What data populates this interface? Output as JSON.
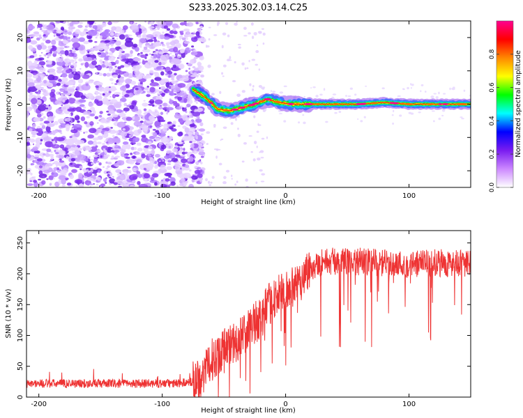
{
  "figure_title": "S233.2025.302.03.14.C25",
  "chart_data": [
    {
      "type": "heatmap",
      "title": "S233.2025.302.03.14.C25",
      "xlabel": "Height of straight line (km)",
      "ylabel": "Frequency (Hz)",
      "xlim": [
        -210,
        150
      ],
      "ylim": [
        -25,
        25
      ],
      "xticks": [
        -200,
        -100,
        0,
        100
      ],
      "yticks": [
        -20,
        -10,
        0,
        10,
        20
      ],
      "colorbar": {
        "label": "Normalized spectral amplitude",
        "range": [
          0,
          1
        ],
        "ticks": [
          0.0,
          0.2,
          0.4,
          0.6,
          0.8
        ],
        "colors": [
          "#ffffff",
          "#cc88ff",
          "#7a1cf0",
          "#0000ff",
          "#00ffff",
          "#00ff00",
          "#ffff00",
          "#ff8800",
          "#ff0000",
          "#ff0090"
        ]
      },
      "regions": [
        {
          "name": "noise",
          "height_range": [
            -210,
            -75
          ],
          "frequency_range": [
            -25,
            25
          ],
          "amplitude": "low"
        },
        {
          "name": "signal_band",
          "height_range": [
            -75,
            150
          ],
          "center_frequency": [
            [
              -75,
              4.5
            ],
            [
              -65,
              2.0
            ],
            [
              -55,
              -1.5
            ],
            [
              -45,
              -2.0
            ],
            [
              -35,
              -1.0
            ],
            [
              -25,
              0.0
            ],
            [
              -15,
              1.5
            ],
            [
              -5,
              0.5
            ],
            [
              5,
              0.0
            ],
            [
              20,
              0.0
            ],
            [
              40,
              0.0
            ],
            [
              60,
              0.0
            ],
            [
              80,
              0.5
            ],
            [
              100,
              0.0
            ],
            [
              150,
              0.0
            ]
          ]
        }
      ]
    },
    {
      "type": "line",
      "xlabel": "Height of straight line (km)",
      "ylabel": "SNR (10 * v/v)",
      "xlim": [
        -210,
        150
      ],
      "ylim": [
        0,
        270
      ],
      "xticks": [
        -200,
        -100,
        0,
        100
      ],
      "yticks": [
        0,
        50,
        100,
        150,
        200,
        250
      ],
      "series": [
        {
          "name": "SNR",
          "color": "#ee3333",
          "x": [
            -210,
            -180,
            -150,
            -120,
            -90,
            -75,
            -65,
            -60,
            -50,
            -40,
            -30,
            -20,
            -10,
            0,
            10,
            20,
            30,
            40,
            60,
            80,
            100,
            120,
            150
          ],
          "y": [
            22,
            22,
            22,
            22,
            22,
            25,
            40,
            60,
            80,
            90,
            110,
            130,
            160,
            170,
            185,
            210,
            220,
            220,
            220,
            218,
            215,
            218,
            215
          ]
        }
      ]
    }
  ]
}
